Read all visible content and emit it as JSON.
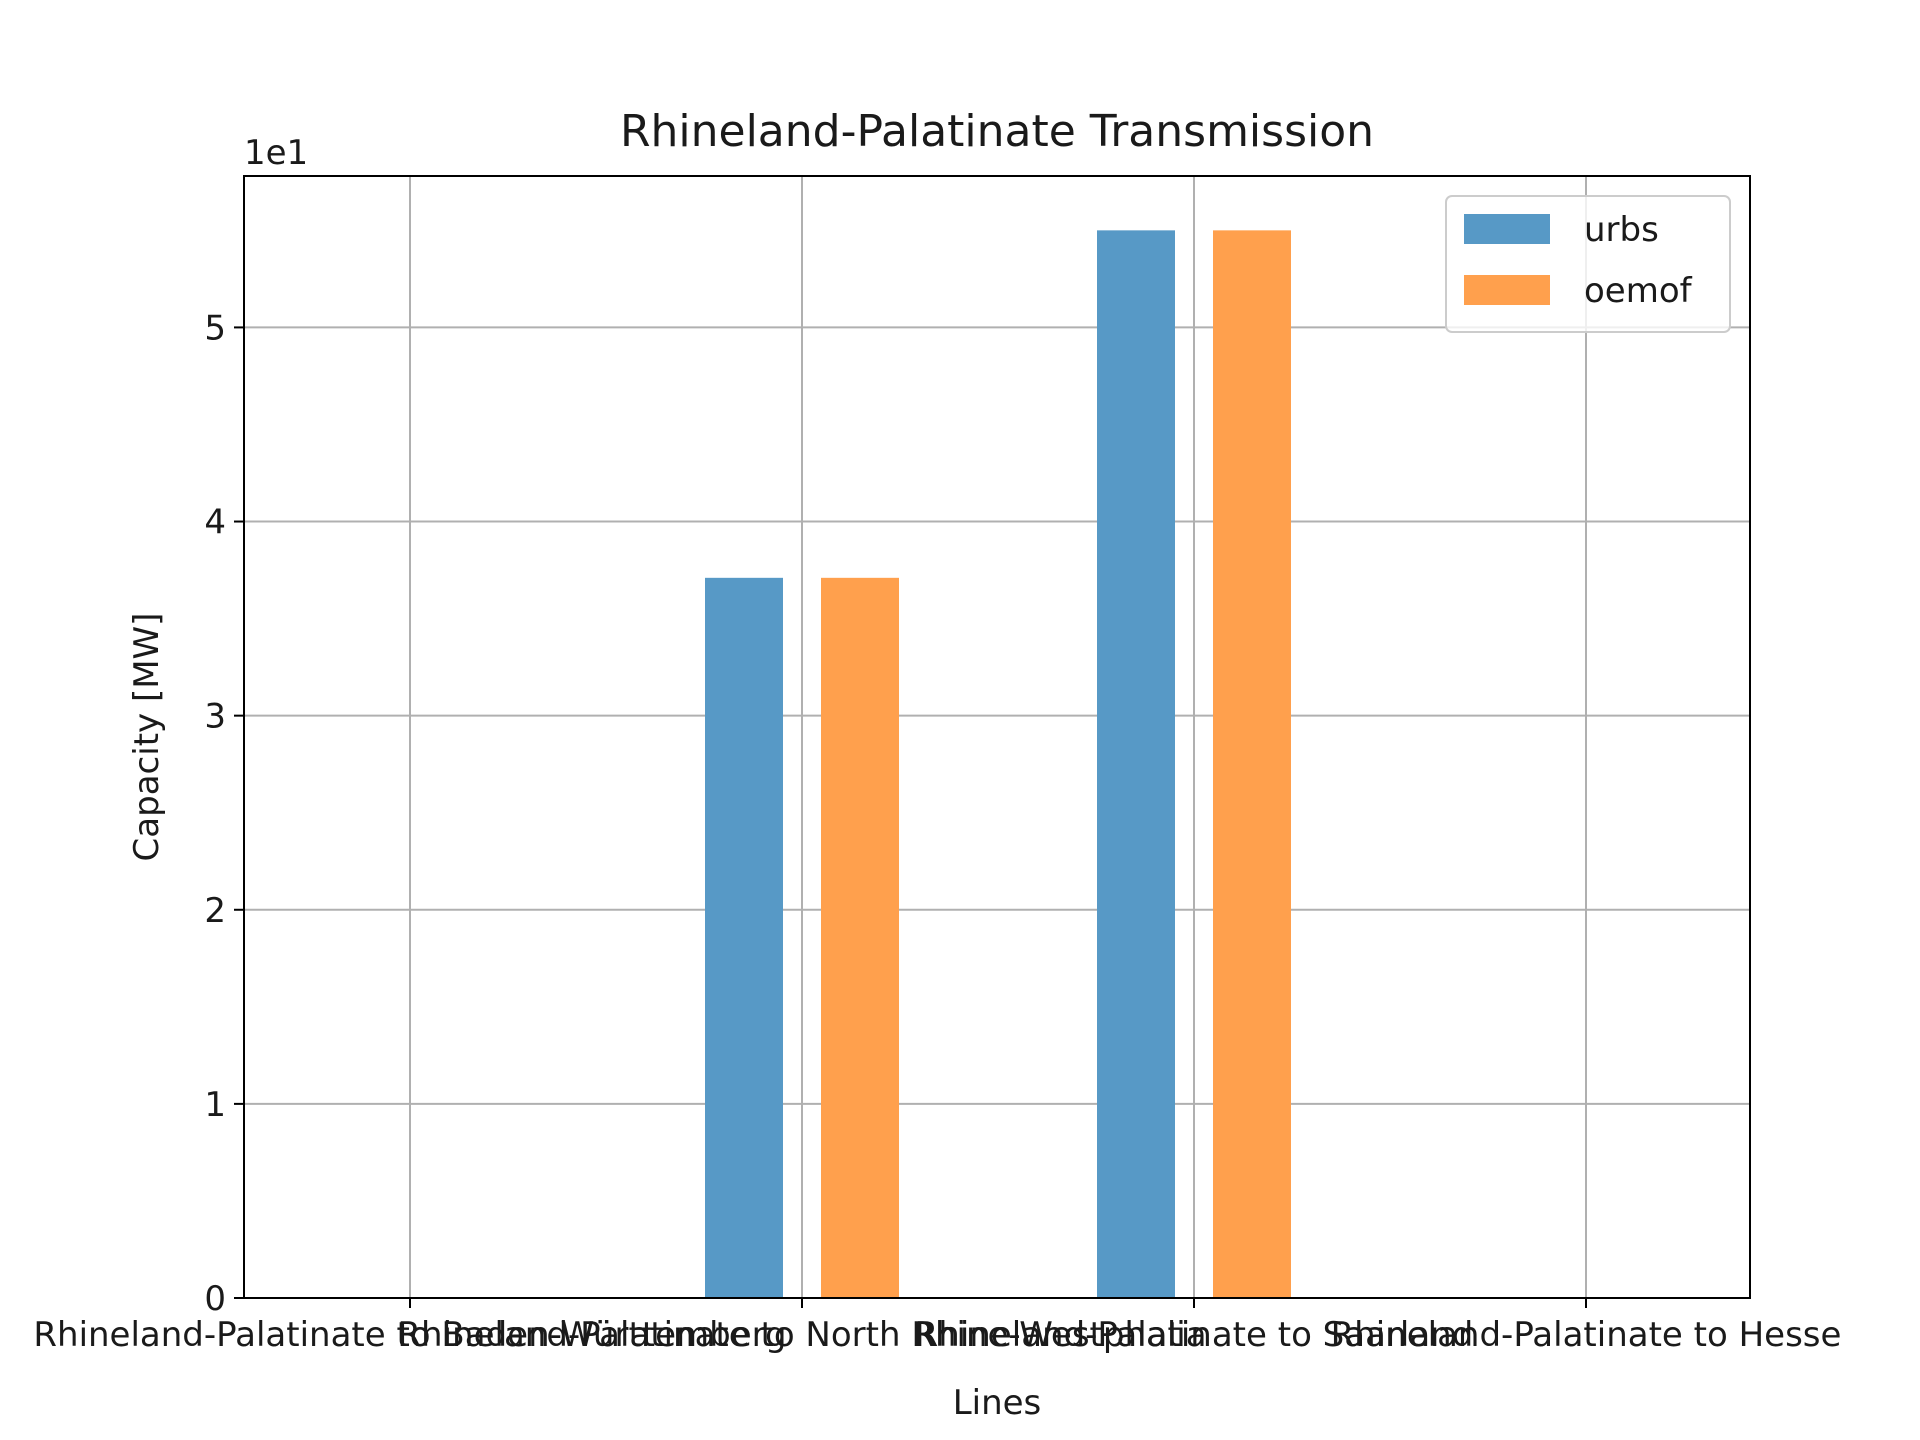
{
  "chart_data": {
    "type": "bar",
    "title": "Rhineland-Palatinate Transmission",
    "xlabel": "Lines",
    "ylabel": "Capacity [MW]",
    "y_offset_text": "1e1",
    "categories": [
      "Rhineland-Palatinate to Baden-Württemberg",
      "Rhineland-Palatinate to North Rhine-Westphalia",
      "Rhineland-Palatinate to Saarland",
      "Rhineland-Palatinate to Hesse"
    ],
    "series": [
      {
        "name": "urbs",
        "color": "#5799c6",
        "values": [
          0,
          37.1,
          55.0,
          0
        ]
      },
      {
        "name": "oemof",
        "color": "#ffa04d",
        "values": [
          0,
          37.1,
          55.0,
          0
        ]
      }
    ],
    "ylim": [
      0,
      57.8
    ],
    "yticks": [
      0,
      10,
      20,
      30,
      40,
      50
    ],
    "ytick_labels": [
      "0",
      "1",
      "2",
      "3",
      "4",
      "5"
    ],
    "grid": true,
    "legend_position": "top-right"
  }
}
